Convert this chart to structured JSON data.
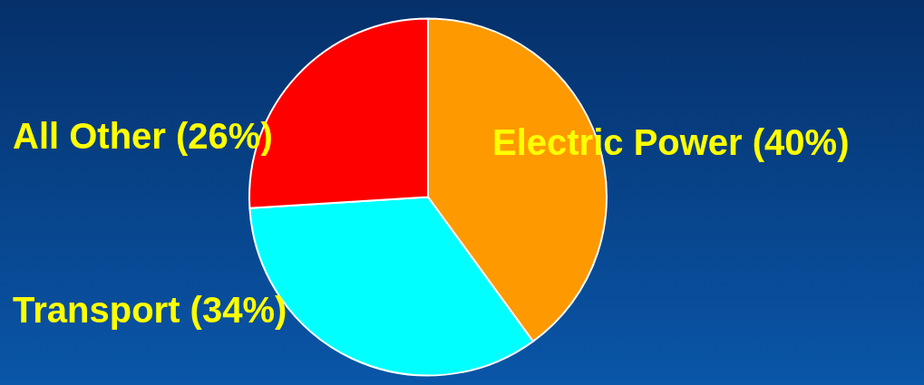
{
  "chart_data": {
    "type": "pie",
    "categories": [
      "Electric Power (40%)",
      "Transport (34%)",
      "All Other (26%)"
    ],
    "values": [
      40,
      34,
      26
    ],
    "colors": [
      "#ff9900",
      "#00ffff",
      "#ff0000"
    ],
    "legend": false
  }
}
